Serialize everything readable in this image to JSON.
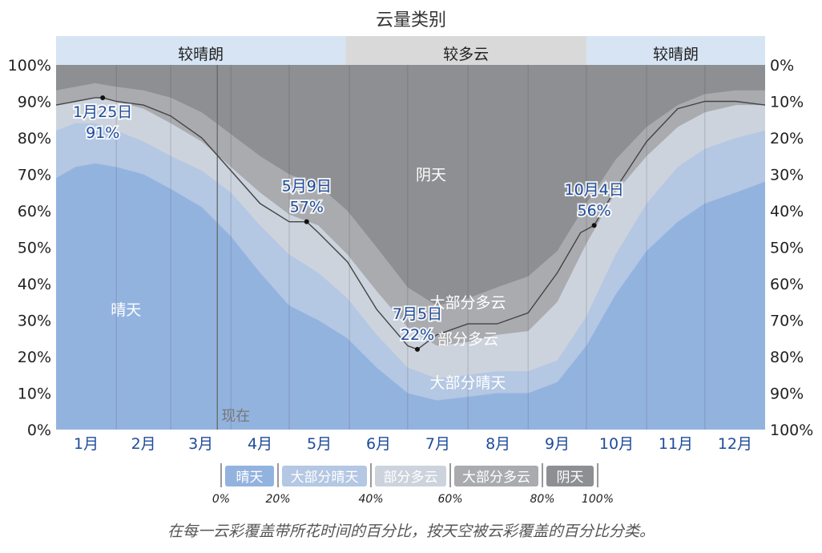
{
  "chart_data": {
    "type": "area",
    "title": "云量类别",
    "months": [
      "1月",
      "2月",
      "3月",
      "4月",
      "5月",
      "6月",
      "7月",
      "8月",
      "9月",
      "10月",
      "11月",
      "12月"
    ],
    "y_left_ticks": [
      "0%",
      "10%",
      "20%",
      "30%",
      "40%",
      "50%",
      "60%",
      "70%",
      "80%",
      "90%",
      "100%"
    ],
    "y_right_ticks": [
      "100%",
      "90%",
      "80%",
      "70%",
      "60%",
      "50%",
      "40%",
      "30%",
      "20%",
      "10%",
      "0%"
    ],
    "ylim": [
      0,
      100
    ],
    "x_range_days": [
      0,
      365
    ],
    "season_bands": [
      {
        "label": "较晴朗",
        "start_day": 0,
        "end_day": 149,
        "color": "#d6e4f3"
      },
      {
        "label": "较多云",
        "start_day": 149,
        "end_day": 273,
        "color": "#d9d9d9"
      },
      {
        "label": "较晴朗",
        "start_day": 273,
        "end_day": 365,
        "color": "#d6e4f3"
      }
    ],
    "category_colors": {
      "clear": "#93b3df",
      "mostly_clear": "#b4c7e3",
      "partly_cloudy": "#ccd3dd",
      "mostly_cloudy": "#a9abaf",
      "overcast": "#8e8f92"
    },
    "series": [
      {
        "name": "晴天",
        "key": "clear",
        "x": [
          0,
          10,
          20,
          31,
          45,
          59,
          75,
          90,
          105,
          120,
          135,
          150,
          165,
          181,
          196,
          212,
          227,
          243,
          258,
          273,
          288,
          304,
          320,
          334,
          350,
          365
        ],
        "y": [
          69,
          72,
          73,
          72,
          70,
          66,
          61,
          53,
          43,
          34,
          30,
          25,
          17,
          10,
          8,
          9,
          10,
          10,
          13,
          23,
          37,
          49,
          57,
          62,
          65,
          68
        ]
      },
      {
        "name": "大部分晴天",
        "key": "mostly_clear",
        "x": [
          0,
          10,
          20,
          31,
          45,
          59,
          75,
          90,
          105,
          120,
          135,
          150,
          165,
          181,
          196,
          212,
          227,
          243,
          258,
          273,
          288,
          304,
          320,
          334,
          350,
          365
        ],
        "y": [
          82,
          84,
          84,
          82,
          79,
          75,
          71,
          65,
          56,
          48,
          43,
          36,
          26,
          17,
          14,
          15,
          16,
          16,
          19,
          31,
          48,
          62,
          72,
          77,
          80,
          82
        ]
      },
      {
        "name": "部分多云",
        "key": "partly_cloudy",
        "x": [
          0,
          10,
          20,
          31,
          45,
          59,
          75,
          90,
          105,
          120,
          135,
          150,
          165,
          181,
          196,
          212,
          227,
          243,
          258,
          273,
          288,
          304,
          320,
          334,
          350,
          365
        ],
        "y": [
          89,
          90,
          91,
          90,
          88,
          84,
          79,
          72,
          65,
          59,
          56,
          48,
          38,
          28,
          23,
          24,
          26,
          27,
          35,
          51,
          65,
          75,
          83,
          87,
          89,
          89
        ]
      },
      {
        "name": "大部分多云",
        "key": "mostly_cloudy",
        "x": [
          0,
          10,
          20,
          31,
          45,
          59,
          75,
          90,
          105,
          120,
          135,
          150,
          165,
          181,
          196,
          212,
          227,
          243,
          258,
          273,
          288,
          304,
          320,
          334,
          350,
          365
        ],
        "y": [
          93,
          94,
          95,
          94,
          93,
          91,
          87,
          81,
          75,
          70,
          67,
          60,
          50,
          39,
          34,
          36,
          39,
          42,
          49,
          62,
          74,
          83,
          89,
          92,
          93,
          93
        ]
      },
      {
        "name": "阴天",
        "key": "overcast",
        "x": [
          0,
          365
        ],
        "y": [
          100,
          100
        ]
      }
    ],
    "clearer_line": {
      "x": [
        0,
        10,
        20,
        24,
        31,
        45,
        59,
        75,
        90,
        105,
        120,
        129,
        135,
        150,
        165,
        181,
        186,
        196,
        212,
        227,
        243,
        258,
        270,
        277,
        288,
        304,
        320,
        334,
        350,
        365
      ],
      "y": [
        89,
        90,
        91,
        91,
        90,
        89,
        86,
        80,
        71,
        62,
        57,
        57,
        54,
        46,
        33,
        23,
        22,
        26,
        29,
        29,
        32,
        43,
        54,
        56,
        66,
        79,
        88,
        90,
        90,
        89
      ]
    },
    "annotations": [
      {
        "day": 24,
        "value": 91,
        "date": "1月25日",
        "pct": "91%",
        "label_side": "below"
      },
      {
        "day": 129,
        "value": 57,
        "date": "5月9日",
        "pct": "57%",
        "label_side": "above"
      },
      {
        "day": 186,
        "value": 22,
        "date": "7月5日",
        "pct": "22%",
        "label_side": "above"
      },
      {
        "day": 277,
        "value": 56,
        "date": "10月4日",
        "pct": "56%",
        "label_side": "above"
      }
    ],
    "area_labels": [
      {
        "text": "晴天",
        "day": 36,
        "value": 33
      },
      {
        "text": "大部分晴天",
        "day": 212,
        "value": 13
      },
      {
        "text": "部分多云",
        "day": 212,
        "value": 25
      },
      {
        "text": "大部分多云",
        "day": 212,
        "value": 35
      },
      {
        "text": "阴天",
        "day": 193,
        "value": 70
      }
    ],
    "now_marker": {
      "text": "现在",
      "day": 83
    },
    "legend": {
      "items": [
        {
          "label": "晴天",
          "key": "clear"
        },
        {
          "label": "大部分晴天",
          "key": "mostly_clear"
        },
        {
          "label": "部分多云",
          "key": "partly_cloudy"
        },
        {
          "label": "大部分多云",
          "key": "mostly_cloudy"
        },
        {
          "label": "阴天",
          "key": "overcast"
        }
      ],
      "ticks": [
        "0%",
        "20%",
        "40%",
        "60%",
        "80%",
        "100%"
      ]
    }
  },
  "caption": "在每一云彩覆盖带所花时间的百分比，按天空被云彩覆盖的百分比分类。"
}
